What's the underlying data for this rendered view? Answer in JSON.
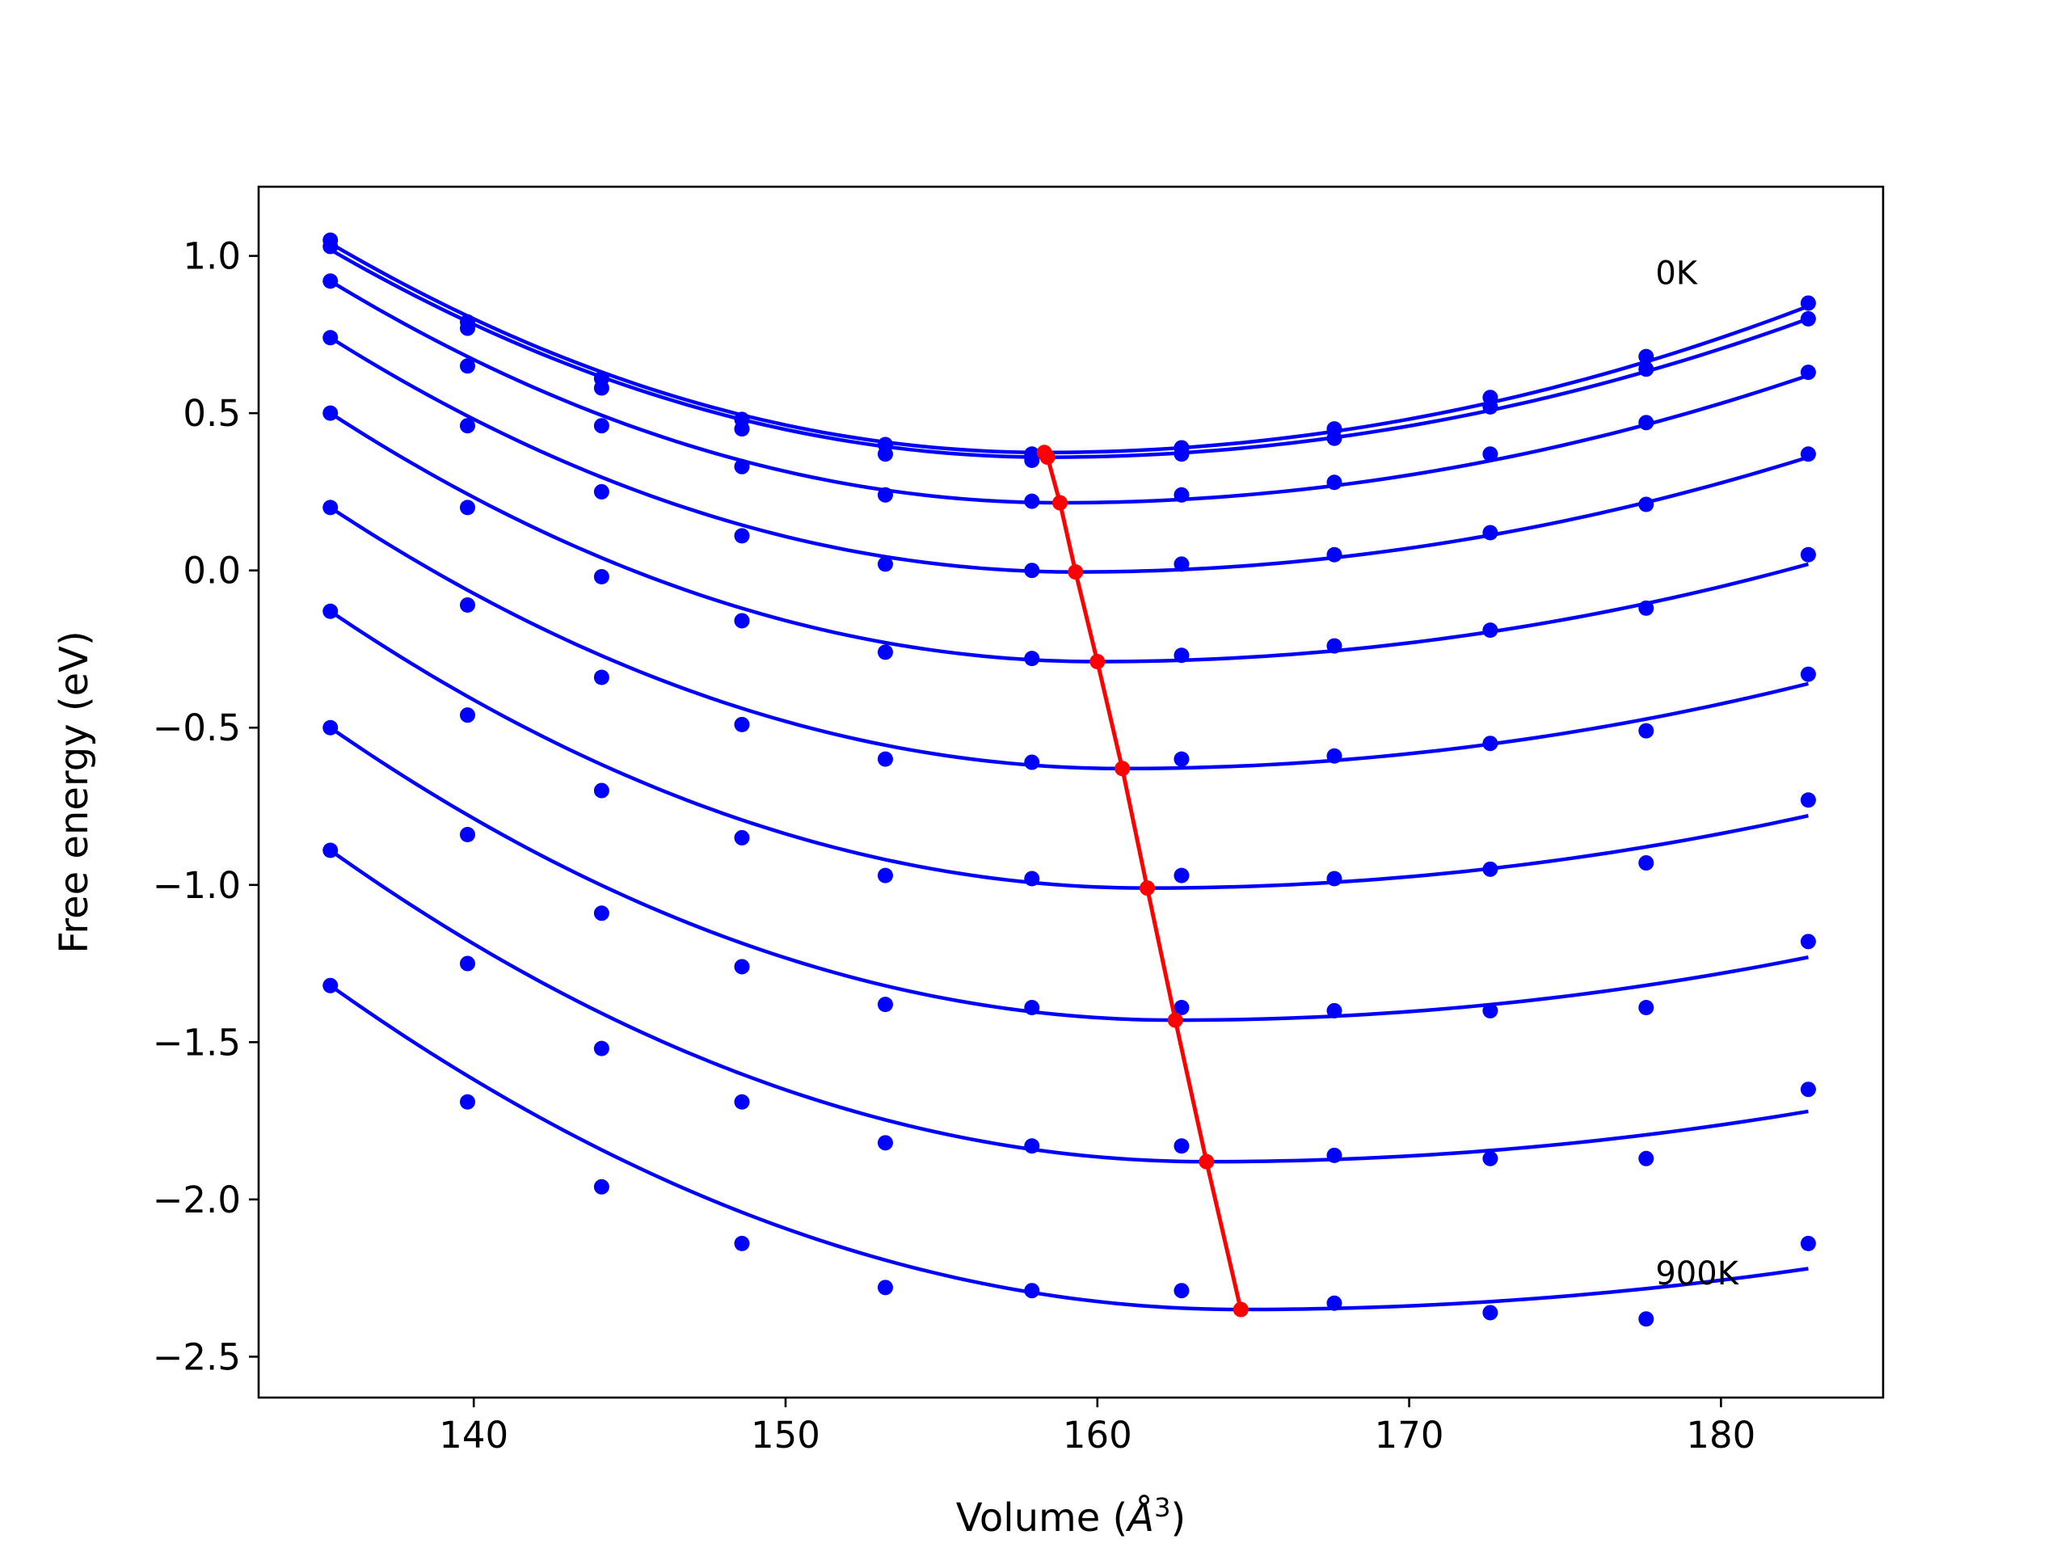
{
  "chart_data": {
    "type": "line",
    "title": "",
    "xlabel_main": "Volume (",
    "xlabel_unit": "Å",
    "xlabel_exp": "3",
    "xlabel_close": ")",
    "ylabel": "Free energy (eV)",
    "xlim": [
      133.1,
      185.2
    ],
    "ylim": [
      -2.63,
      1.22
    ],
    "xticks": [
      140,
      150,
      160,
      170,
      180
    ],
    "yticks": [
      1.0,
      0.5,
      0.0,
      -0.5,
      -1.0,
      -1.5,
      -2.0,
      -2.5
    ],
    "xtick_labels": [
      "140",
      "150",
      "160",
      "170",
      "180"
    ],
    "ytick_labels": [
      "1.0",
      "0.5",
      "0.0",
      "−0.5",
      "−1.0",
      "−1.5",
      "−2.0",
      "−2.5"
    ],
    "grid": false,
    "annotations": [
      {
        "text": "0K",
        "x": 177.9,
        "y": 0.91
      },
      {
        "text": "900K",
        "x": 177.9,
        "y": -2.27
      }
    ],
    "colors": {
      "series": "#0000ff",
      "minimum_path": "#ff0000",
      "axes": "#000000"
    },
    "volumes": [
      135.4,
      139.8,
      144.1,
      148.6,
      153.2,
      157.9,
      162.7,
      167.6,
      172.6,
      177.6,
      182.8
    ],
    "series": [
      {
        "points": [
          1.05,
          0.79,
          0.61,
          0.48,
          0.4,
          0.37,
          0.39,
          0.45,
          0.55,
          0.68,
          0.85
        ],
        "fit_min_v": 158.3,
        "fit_min_e": 0.375,
        "fit_ends": [
          1.04,
          0.84
        ]
      },
      {
        "points": [
          1.03,
          0.77,
          0.58,
          0.45,
          0.37,
          0.35,
          0.37,
          0.42,
          0.52,
          0.64,
          0.8
        ],
        "fit_min_v": 158.4,
        "fit_min_e": 0.36,
        "fit_ends": [
          1.02,
          0.8
        ]
      },
      {
        "points": [
          0.92,
          0.65,
          0.46,
          0.33,
          0.24,
          0.22,
          0.24,
          0.28,
          0.37,
          0.47,
          0.63
        ],
        "fit_min_v": 158.8,
        "fit_min_e": 0.215,
        "fit_ends": [
          0.92,
          0.62
        ]
      },
      {
        "points": [
          0.74,
          0.46,
          0.25,
          0.11,
          0.02,
          0.0,
          0.02,
          0.05,
          0.12,
          0.21,
          0.37
        ],
        "fit_min_v": 159.3,
        "fit_min_e": -0.005,
        "fit_ends": [
          0.74,
          0.36
        ]
      },
      {
        "points": [
          0.5,
          0.2,
          -0.02,
          -0.16,
          -0.26,
          -0.28,
          -0.27,
          -0.24,
          -0.19,
          -0.12,
          0.05
        ],
        "fit_min_v": 160.0,
        "fit_min_e": -0.29,
        "fit_ends": [
          0.5,
          0.02
        ]
      },
      {
        "points": [
          0.2,
          -0.11,
          -0.34,
          -0.49,
          -0.6,
          -0.61,
          -0.6,
          -0.59,
          -0.55,
          -0.51,
          -0.33
        ],
        "fit_min_v": 160.8,
        "fit_min_e": -0.63,
        "fit_ends": [
          0.2,
          -0.36
        ]
      },
      {
        "points": [
          -0.13,
          -0.46,
          -0.7,
          -0.85,
          -0.97,
          -0.98,
          -0.97,
          -0.98,
          -0.95,
          -0.93,
          -0.73
        ],
        "fit_min_v": 161.6,
        "fit_min_e": -1.01,
        "fit_ends": [
          -0.13,
          -0.78
        ]
      },
      {
        "points": [
          -0.5,
          -0.84,
          -1.09,
          -1.26,
          -1.38,
          -1.39,
          -1.39,
          -1.4,
          -1.4,
          -1.39,
          -1.18
        ],
        "fit_min_v": 162.5,
        "fit_min_e": -1.43,
        "fit_ends": [
          -0.5,
          -1.23
        ]
      },
      {
        "points": [
          -0.89,
          -1.25,
          -1.52,
          -1.69,
          -1.82,
          -1.83,
          -1.83,
          -1.86,
          -1.87,
          -1.87,
          -1.65
        ],
        "fit_min_v": 163.5,
        "fit_min_e": -1.88,
        "fit_ends": [
          -0.89,
          -1.72
        ]
      },
      {
        "points": [
          -1.32,
          -1.69,
          -1.96,
          -2.14,
          -2.28,
          -2.29,
          -2.29,
          -2.33,
          -2.36,
          -2.38,
          -2.14
        ],
        "fit_min_v": 164.6,
        "fit_min_e": -2.35,
        "fit_ends": [
          -1.32,
          -2.22
        ]
      }
    ],
    "minimum_path": {
      "x": [
        158.3,
        158.4,
        158.8,
        159.3,
        160.0,
        160.8,
        161.6,
        162.5,
        163.5,
        164.6
      ],
      "y": [
        0.375,
        0.36,
        0.215,
        -0.005,
        -0.29,
        -0.63,
        -1.01,
        -1.43,
        -1.88,
        -2.35
      ]
    }
  }
}
